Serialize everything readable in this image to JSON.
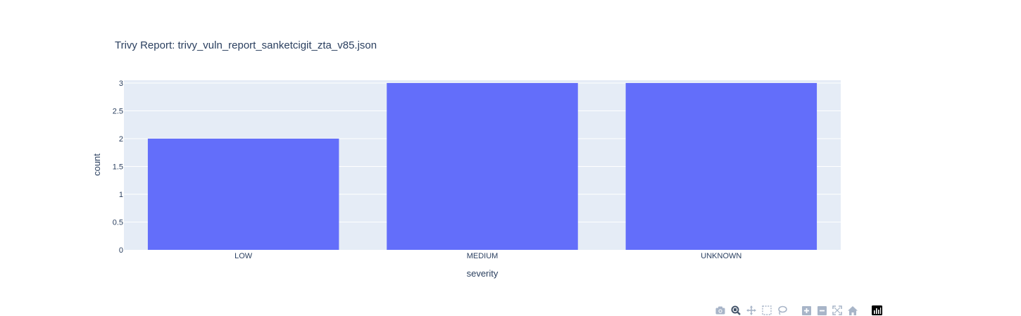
{
  "chart_data": {
    "type": "bar",
    "title": "Trivy Report: trivy_vuln_report_sanketcigit_zta_v85.json",
    "xlabel": "severity",
    "ylabel": "count",
    "categories": [
      "LOW",
      "MEDIUM",
      "UNKNOWN"
    ],
    "values": [
      2,
      3,
      3
    ],
    "ylim": [
      0,
      3.05
    ],
    "yticks": [
      0,
      0.5,
      1,
      1.5,
      2,
      2.5,
      3
    ],
    "ytick_labels": [
      "0",
      "0.5",
      "1",
      "1.5",
      "2",
      "2.5",
      "3"
    ],
    "grid": true,
    "colors": {
      "bar": "#636efa",
      "plot_bg": "#e5ecf6",
      "text": "#2a3f5f"
    }
  },
  "modebar": {
    "icons": [
      "camera-icon",
      "zoom-icon",
      "pan-icon",
      "box-select-icon",
      "lasso-icon",
      "zoom-in-icon",
      "zoom-out-icon",
      "autoscale-icon",
      "reset-axes-icon",
      "plotly-logo-icon"
    ]
  }
}
